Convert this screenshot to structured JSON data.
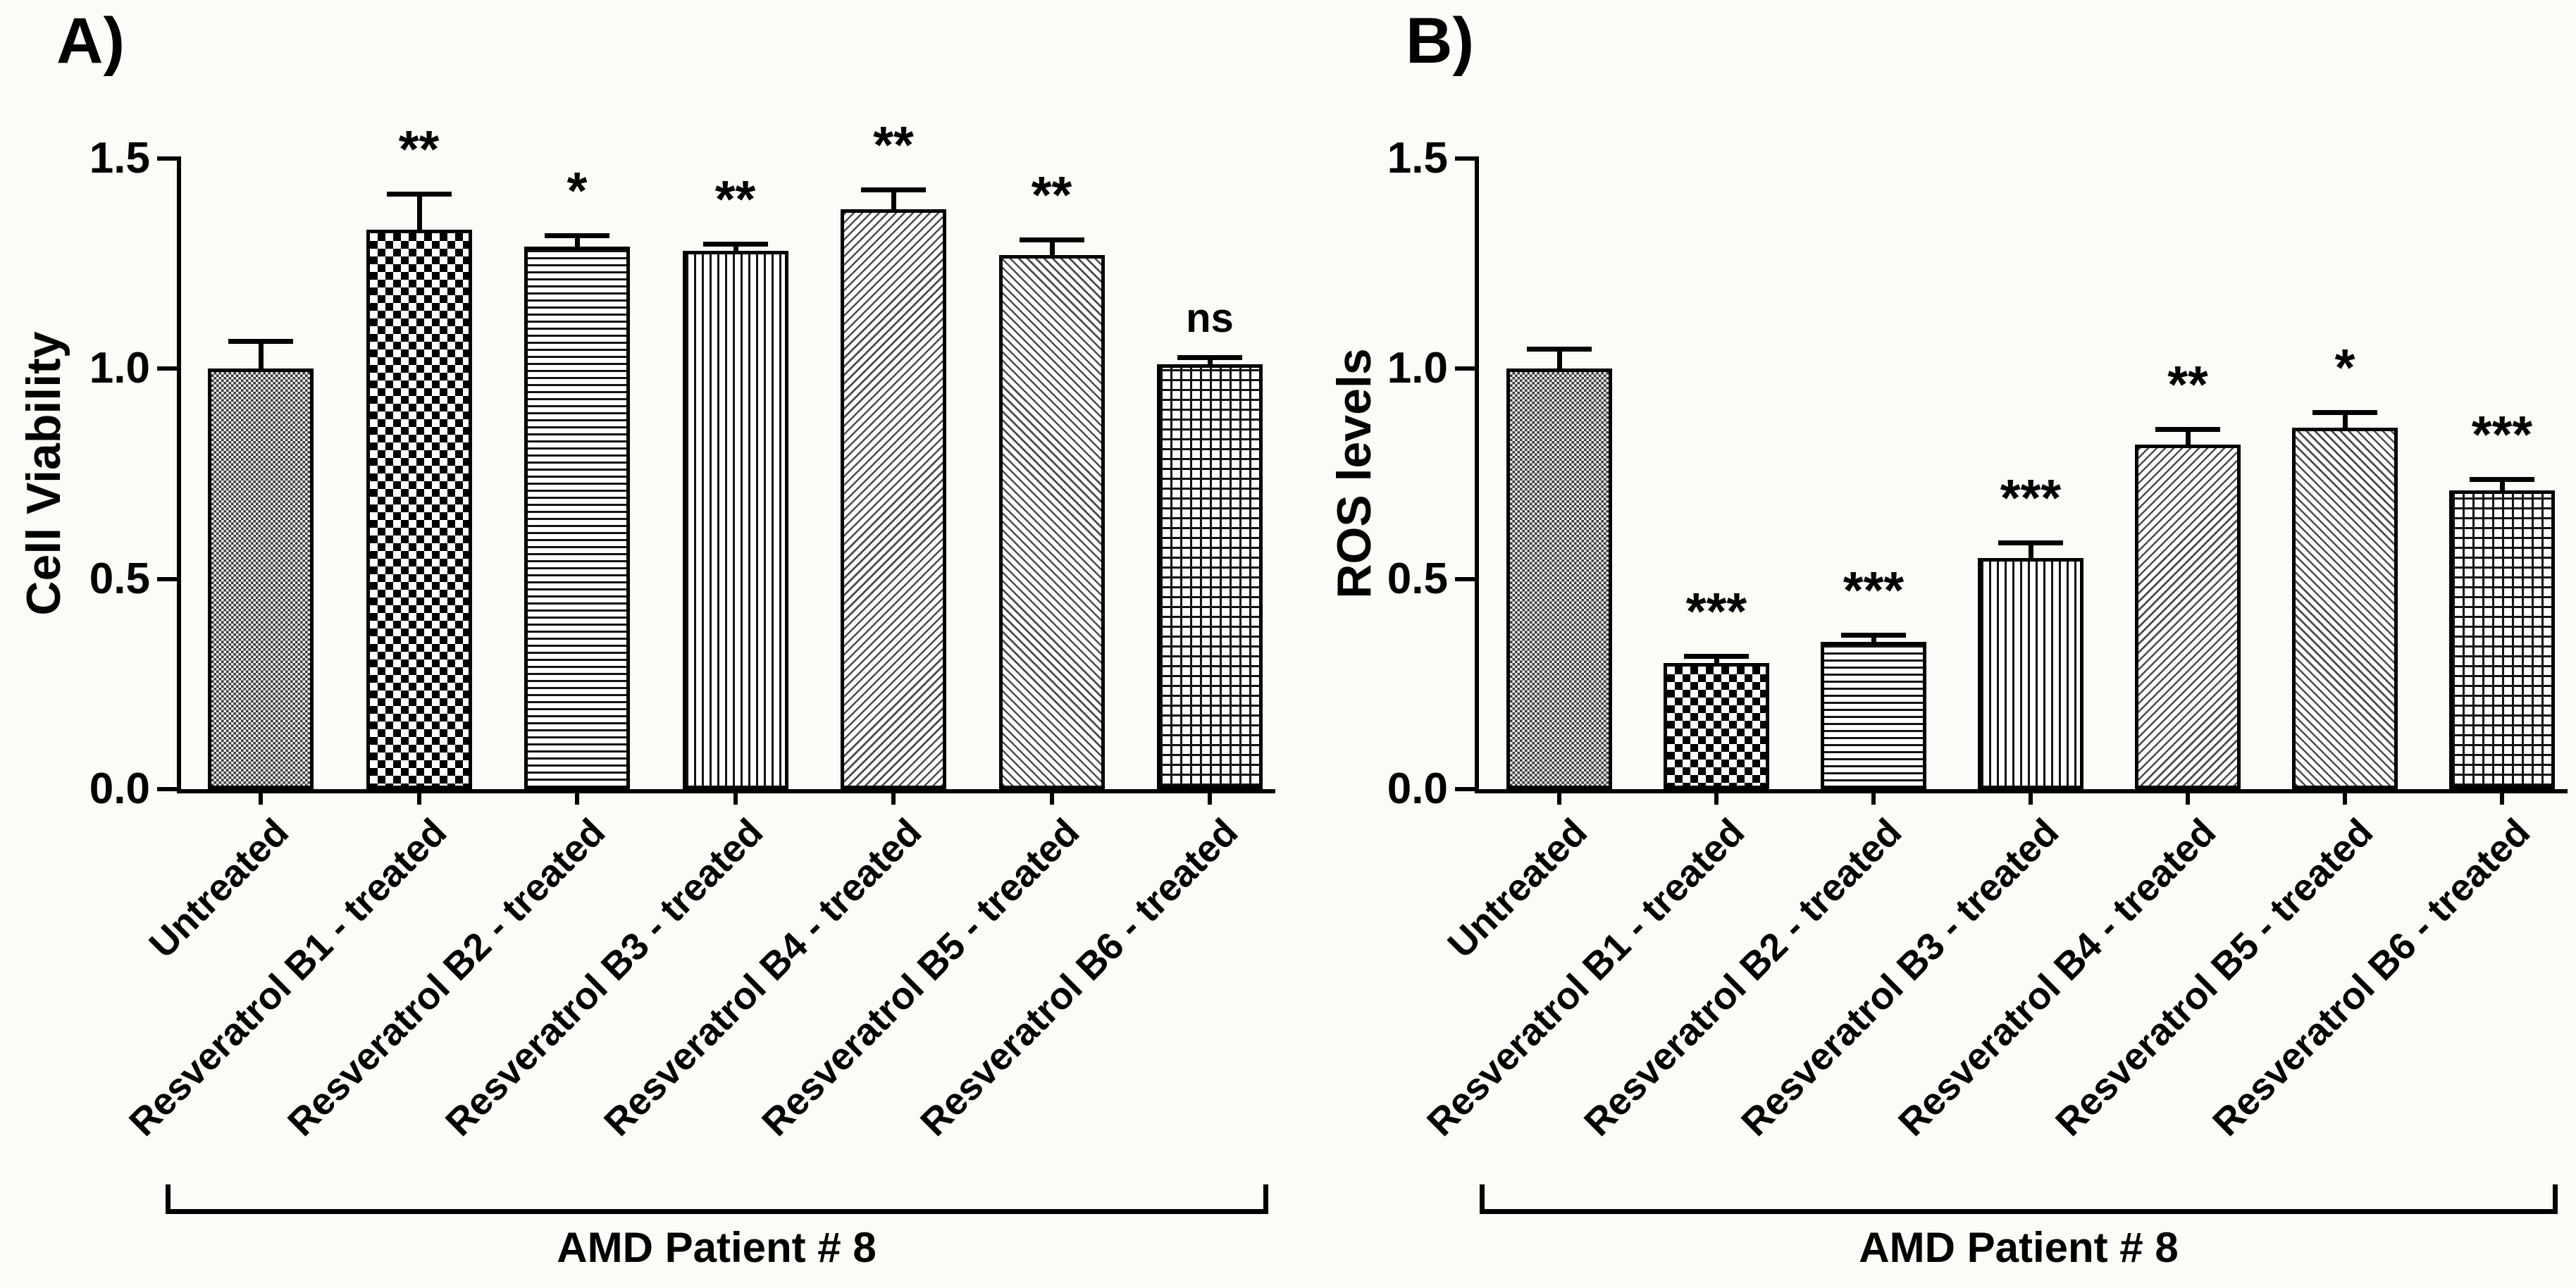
{
  "colors": {
    "ink": "#000000",
    "background": "#fcfbf7"
  },
  "chart_data": [
    {
      "type": "bar",
      "panel_label": "A)",
      "ylabel": "Cell Viability",
      "xlabel": "",
      "ylim": [
        0,
        1.5
      ],
      "yticks": [
        0.0,
        0.5,
        1.0,
        1.5
      ],
      "grid": false,
      "legend_position": "none",
      "categories": [
        "Untreated",
        "Resveratrol B1 - treated",
        "Resveratrol B2 - treated",
        "Resveratrol B3 - treated",
        "Resveratrol B4 - treated",
        "Resveratrol B5 - treated",
        "Resveratrol B6 - treated"
      ],
      "values": [
        1.0,
        1.33,
        1.29,
        1.28,
        1.38,
        1.27,
        1.01
      ],
      "errors_upper": [
        0.06,
        0.08,
        0.02,
        0.01,
        0.04,
        0.03,
        0.01
      ],
      "significance": [
        "",
        "**",
        "*",
        "**",
        "**",
        "**",
        "ns"
      ],
      "bar_patterns": [
        "fine-check",
        "checkerboard",
        "horizontal-lines",
        "vertical-lines",
        "diagonal-up",
        "diagonal-down",
        "grid"
      ],
      "group_label": "AMD Patient # 8"
    },
    {
      "type": "bar",
      "panel_label": "B)",
      "ylabel": "ROS levels",
      "xlabel": "",
      "ylim": [
        0,
        1.5
      ],
      "yticks": [
        0.0,
        0.5,
        1.0,
        1.5
      ],
      "grid": false,
      "legend_position": "none",
      "categories": [
        "Untreated",
        "Resveratrol B1 - treated",
        "Resveratrol B2 - treated",
        "Resveratrol B3 - treated",
        "Resveratrol B4 - treated",
        "Resveratrol B5 - treated",
        "Resveratrol B6 - treated"
      ],
      "values": [
        1.0,
        0.3,
        0.35,
        0.55,
        0.82,
        0.86,
        0.71
      ],
      "errors_upper": [
        0.04,
        0.01,
        0.01,
        0.03,
        0.03,
        0.03,
        0.02
      ],
      "significance": [
        "",
        "***",
        "***",
        "***",
        "**",
        "*",
        "***"
      ],
      "bar_patterns": [
        "fine-check",
        "checkerboard",
        "horizontal-lines",
        "vertical-lines",
        "diagonal-up",
        "diagonal-down",
        "grid"
      ],
      "group_label": "AMD Patient # 8"
    }
  ]
}
